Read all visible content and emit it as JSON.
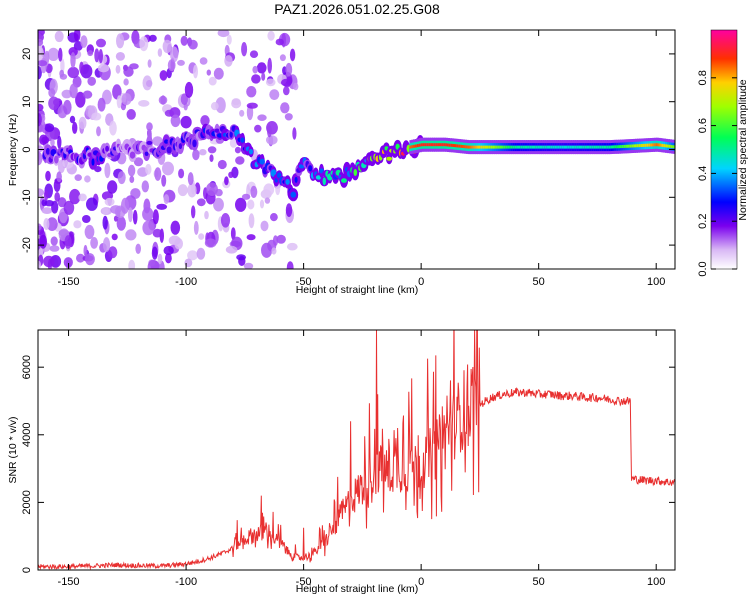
{
  "title": "PAZ1.2026.051.02.25.G08",
  "chart_data": [
    {
      "type": "heatmap",
      "title": "PAZ1.2026.051.02.25.G08",
      "xlabel": "Height of straight line (km)",
      "ylabel": "Frequency (Hz)",
      "xlim": [
        -163,
        108
      ],
      "ylim": [
        -25,
        25
      ],
      "x_ticks": [
        -150,
        -100,
        -50,
        0,
        50,
        100
      ],
      "y_ticks": [
        -20,
        -10,
        0,
        10,
        20
      ],
      "colorbar": {
        "label": "Normalized spectral amplitude",
        "range": [
          0,
          1
        ],
        "ticks": [
          0.0,
          0.2,
          0.4,
          0.6,
          0.8
        ],
        "tick_labels": [
          "0.0",
          "0.2",
          "0.4",
          "0.6",
          "0.8"
        ]
      },
      "frequency_trace": {
        "x": [
          -150,
          -140,
          -130,
          -120,
          -110,
          -100,
          -90,
          -80,
          -70,
          -60,
          -55,
          -50,
          -45,
          -40,
          -35,
          -30,
          -25,
          -20,
          -15,
          -10,
          -5,
          0,
          10,
          20,
          40,
          60,
          80,
          100,
          108
        ],
        "y": [
          -1,
          -1.5,
          -0.5,
          0,
          0.5,
          2,
          3,
          3.5,
          -3,
          -6,
          -9,
          -3,
          -5,
          -6,
          -6,
          -5,
          -3,
          -2,
          -1,
          0,
          0.5,
          1,
          1,
          0.5,
          0.5,
          0.5,
          0.5,
          1,
          0.5
        ],
        "amplitude": [
          0.2,
          0.25,
          0.2,
          0.2,
          0.2,
          0.25,
          0.25,
          0.3,
          0.3,
          0.3,
          0.3,
          0.3,
          0.35,
          0.4,
          0.4,
          0.45,
          0.5,
          0.6,
          0.7,
          0.8,
          0.85,
          0.9,
          0.9,
          0.85,
          0.5,
          0.45,
          0.5,
          0.85,
          0.6
        ]
      }
    },
    {
      "type": "line",
      "xlabel": "Height of straight line (km)",
      "ylabel": "SNR (10 * v/v)",
      "xlim": [
        -163,
        108
      ],
      "ylim": [
        0,
        7100
      ],
      "x_ticks": [
        -150,
        -100,
        -50,
        0,
        50,
        100
      ],
      "y_ticks": [
        0,
        2000,
        4000,
        6000
      ],
      "series": [
        {
          "name": "SNR",
          "color": "#e83030",
          "x": [
            -163,
            -150,
            -140,
            -130,
            -120,
            -110,
            -100,
            -95,
            -90,
            -85,
            -80,
            -75,
            -70,
            -65,
            -60,
            -55,
            -50,
            -45,
            -40,
            -35,
            -30,
            -25,
            -20,
            -15,
            -10,
            -5,
            0,
            5,
            10,
            15,
            20,
            25,
            30,
            35,
            40,
            45,
            50,
            55,
            60,
            65,
            70,
            75,
            80,
            85,
            88,
            89,
            89.5,
            95,
            100,
            105,
            108
          ],
          "y": [
            100,
            100,
            120,
            150,
            130,
            120,
            180,
            250,
            350,
            480,
            650,
            850,
            1000,
            1050,
            700,
            400,
            300,
            500,
            850,
            1400,
            1900,
            2300,
            2700,
            2700,
            2800,
            2800,
            2900,
            3200,
            3600,
            4100,
            4600,
            4900,
            5100,
            5200,
            5250,
            5250,
            5200,
            5200,
            5150,
            5150,
            5100,
            5100,
            5050,
            5000,
            5000,
            5000,
            2700,
            2650,
            2650,
            2600,
            2600
          ],
          "peaks": [
            {
              "x": -68,
              "y": 2200
            },
            {
              "x": -50,
              "y": 1250
            },
            {
              "x": -30,
              "y": 4400
            },
            {
              "x": -19,
              "y": 7100
            },
            {
              "x": -10,
              "y": 4200
            },
            {
              "x": -5,
              "y": 4300
            }
          ]
        }
      ]
    }
  ]
}
